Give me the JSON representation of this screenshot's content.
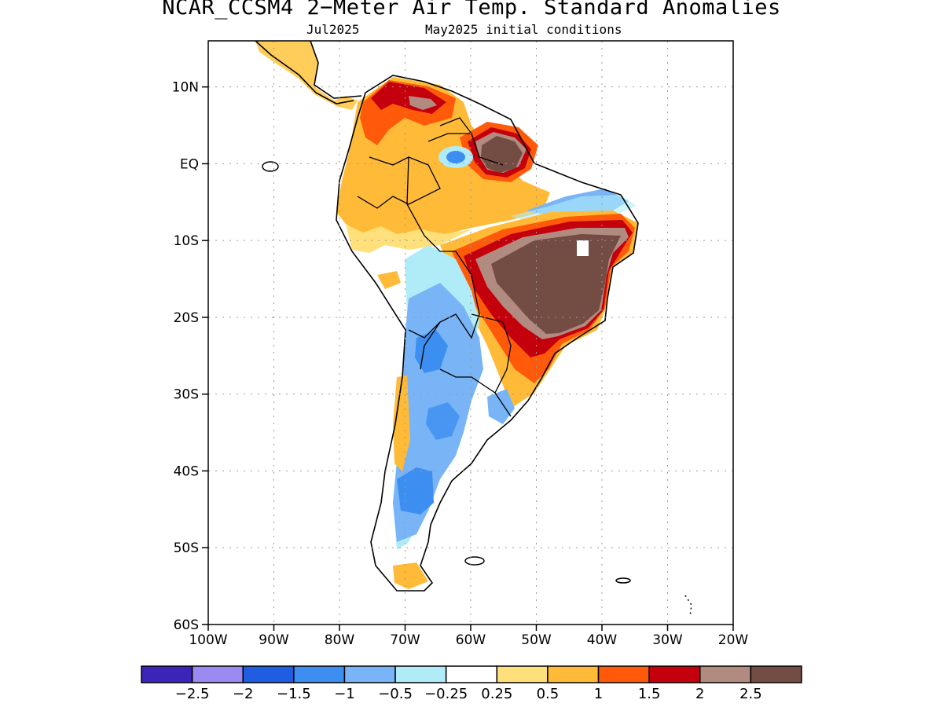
{
  "header": {
    "title": "NCAR_CCSM4 2−Meter Air Temp. Standard Anomalies",
    "valid_month": "Jul2025",
    "init_conditions": "May2025 initial conditions"
  },
  "axes": {
    "lat_labels": [
      "10N",
      "EQ",
      "10S",
      "20S",
      "30S",
      "40S",
      "50S",
      "60S"
    ],
    "lat_values": [
      10,
      0,
      -10,
      -20,
      -30,
      -40,
      -50,
      -60
    ],
    "lon_labels": [
      "100W",
      "90W",
      "80W",
      "70W",
      "60W",
      "50W",
      "40W",
      "30W",
      "20W"
    ],
    "lon_values": [
      -100,
      -90,
      -80,
      -70,
      -60,
      -50,
      -40,
      -30,
      -20
    ],
    "lat_range": [
      -60,
      16
    ],
    "lon_range": [
      -100,
      -20
    ],
    "grid": "dotted"
  },
  "colorbar": {
    "colors": [
      "#3b25b8",
      "#9a8af2",
      "#1f5ee0",
      "#3c8ef0",
      "#78b4f6",
      "#b0ecf8",
      "#ffffff",
      "#ffe07a",
      "#ffbb38",
      "#ff5a0a",
      "#c4000c",
      "#b28b80",
      "#734c44"
    ],
    "labels": [
      "−2.5",
      "−2",
      "−1.5",
      "−1",
      "−0.5",
      "−0.25",
      "0.25",
      "0.5",
      "1",
      "1.5",
      "2",
      "2.5"
    ]
  }
}
